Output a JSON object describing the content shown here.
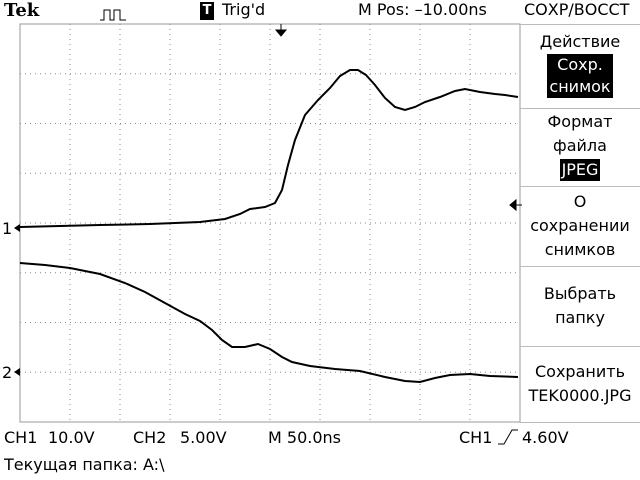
{
  "header": {
    "brand": "Tek",
    "trigger_box": "T",
    "trigger_status": "Trig'd",
    "position": "M Pos: –10.00ns",
    "menu_title": "СОХР/ВОССТ"
  },
  "menu": [
    {
      "label": [
        "Действие"
      ],
      "value": [
        "Сохр.",
        "снимок"
      ]
    },
    {
      "label": [
        "Формат",
        "файла"
      ],
      "value": [
        "JPEG"
      ]
    },
    {
      "label": [
        "О",
        "сохранении",
        "снимков"
      ]
    },
    {
      "label": [
        "Выбрать",
        "папку"
      ]
    },
    {
      "label": [
        "Сохранить",
        "TEK0000.JPG"
      ]
    }
  ],
  "markers": [
    "1",
    "2"
  ],
  "status": {
    "ch1": "CH1",
    "ch1_scale": "10.0V",
    "ch2": "CH2",
    "ch2_scale": "5.00V",
    "timebase": "M 50.0ns",
    "trigger_source": "CH1",
    "trigger_level": "4.60V"
  },
  "footer": "Текущая папка: A:\\"
}
